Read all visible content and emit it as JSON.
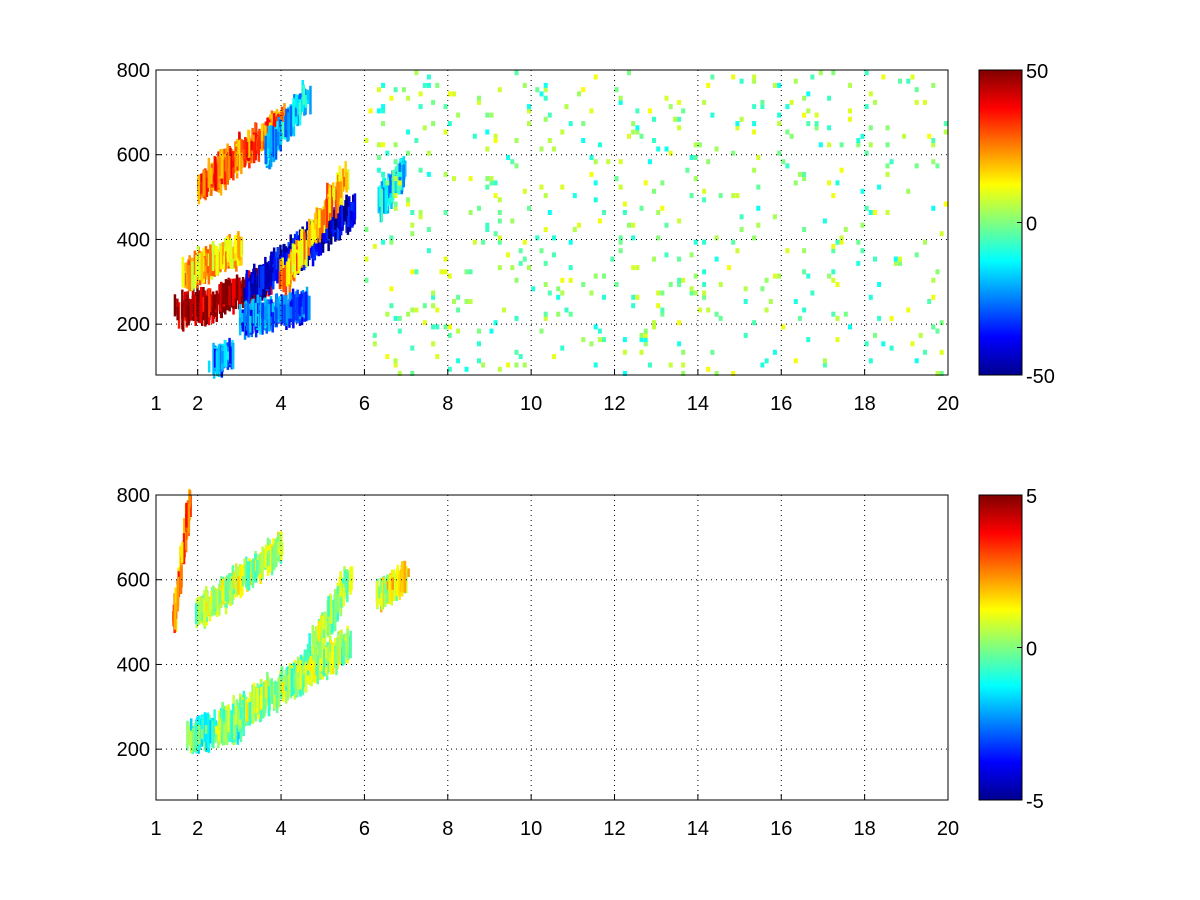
{
  "chart_data": [
    {
      "type": "heatmap",
      "title": "",
      "xlabel": "",
      "ylabel": "",
      "xlim": [
        1,
        20
      ],
      "ylim": [
        80,
        800
      ],
      "xticks": [
        1,
        2,
        4,
        6,
        8,
        10,
        12,
        14,
        16,
        18,
        20
      ],
      "yticks": [
        200,
        400,
        600,
        800
      ],
      "grid": true,
      "colormap": "jet",
      "colorbar": {
        "min": -50,
        "max": 50,
        "ticks": [
          -50,
          0,
          50
        ]
      },
      "features": [
        {
          "x": [
            1.5,
            2.5
          ],
          "y": [
            230,
            250
          ],
          "value": 45,
          "spread": 0.5
        },
        {
          "x": [
            2.5,
            3.7
          ],
          "y": [
            260,
            300
          ],
          "value": 50,
          "spread": 0.4
        },
        {
          "x": [
            3.2,
            5.7
          ],
          "y": [
            280,
            470
          ],
          "value": -42,
          "spread": 0.6
        },
        {
          "x": [
            3.0,
            4.6
          ],
          "y": [
            210,
            245
          ],
          "value": -28,
          "spread": 0.5
        },
        {
          "x": [
            2.0,
            4.0
          ],
          "y": [
            520,
            680
          ],
          "value": 28,
          "spread": 0.5
        },
        {
          "x": [
            3.6,
            4.6
          ],
          "y": [
            600,
            740
          ],
          "value": -18,
          "spread": 0.4
        },
        {
          "x": [
            1.7,
            3.0
          ],
          "y": [
            320,
            380
          ],
          "value": 18,
          "spread": 0.5
        },
        {
          "x": [
            4.0,
            5.5
          ],
          "y": [
            300,
            540
          ],
          "value": 20,
          "spread": 0.5
        },
        {
          "x": [
            2.3,
            2.8
          ],
          "y": [
            110,
            130
          ],
          "value": -25,
          "spread": 0.4
        },
        {
          "x": [
            6.3,
            6.9
          ],
          "y": [
            480,
            560
          ],
          "value": -15,
          "spread": 0.4
        }
      ],
      "scatter": {
        "x_range": [
          6,
          20
        ],
        "density": 0.05,
        "value_range": [
          -12,
          12
        ]
      }
    },
    {
      "type": "heatmap",
      "title": "",
      "xlabel": "",
      "ylabel": "",
      "xlim": [
        1,
        20
      ],
      "ylim": [
        80,
        800
      ],
      "xticks": [
        1,
        2,
        4,
        6,
        8,
        10,
        12,
        14,
        16,
        18,
        20
      ],
      "yticks": [
        200,
        400,
        600,
        800
      ],
      "grid": true,
      "colormap": "jet",
      "colorbar": {
        "min": -5,
        "max": 5,
        "ticks": [
          -5,
          0,
          5
        ]
      },
      "features": [
        {
          "x": [
            1.8,
            3.0
          ],
          "y": [
            230,
            260
          ],
          "value": -0.5,
          "spread": 0.5
        },
        {
          "x": [
            2.5,
            5.6
          ],
          "y": [
            250,
            450
          ],
          "value": 0.3,
          "spread": 0.6
        },
        {
          "x": [
            2.0,
            4.0
          ],
          "y": [
            520,
            680
          ],
          "value": 0.5,
          "spread": 0.4
        },
        {
          "x": [
            4.3,
            5.6
          ],
          "y": [
            350,
            600
          ],
          "value": 0.2,
          "spread": 0.5
        },
        {
          "x": [
            6.3,
            7.0
          ],
          "y": [
            560,
            610
          ],
          "value": 1.0,
          "spread": 0.3
        },
        {
          "x": [
            1.4,
            1.8
          ],
          "y": [
            500,
            800
          ],
          "value": 2.5,
          "spread": 0.2
        }
      ],
      "scatter": {
        "x_range": [
          8,
          14
        ],
        "density": 0.0,
        "value_range": [
          0,
          1
        ]
      }
    }
  ]
}
